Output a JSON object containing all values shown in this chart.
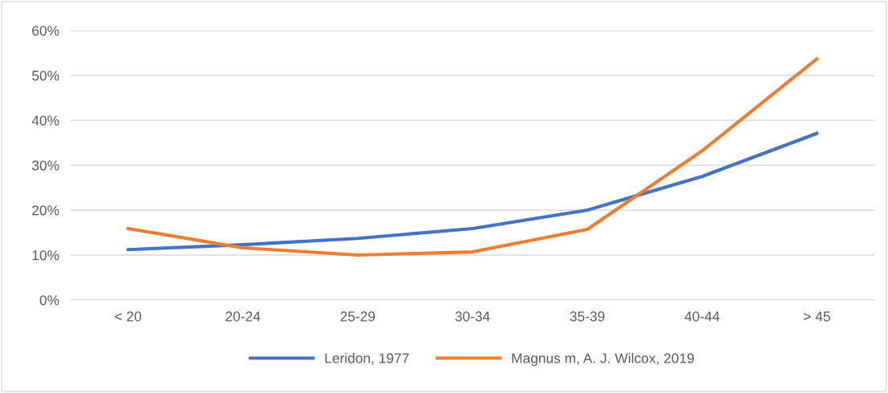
{
  "chart_data": {
    "type": "line",
    "categories": [
      "< 20",
      "20-24",
      "25-29",
      "30-34",
      "35-39",
      "40-44",
      "> 45"
    ],
    "series": [
      {
        "name": "Leridon, 1977",
        "color": "#4472c4",
        "values": [
          11.2,
          12.3,
          13.7,
          15.9,
          20.0,
          27.5,
          37.1
        ]
      },
      {
        "name": "Magnus m, A. J. Wilcox, 2019",
        "color": "#ed7d31",
        "values": [
          15.9,
          11.6,
          10.0,
          10.7,
          15.7,
          33.2,
          53.7
        ]
      }
    ],
    "ylim": [
      0,
      60
    ],
    "yticks": [
      {
        "value": 0,
        "label": "0%"
      },
      {
        "value": 10,
        "label": "10%"
      },
      {
        "value": 20,
        "label": "20%"
      },
      {
        "value": 30,
        "label": "30%"
      },
      {
        "value": 40,
        "label": "40%"
      },
      {
        "value": 50,
        "label": "50%"
      },
      {
        "value": 60,
        "label": "60%"
      }
    ],
    "grid": "y",
    "legend": "bottom",
    "marker": "none",
    "line_style": "solid"
  }
}
